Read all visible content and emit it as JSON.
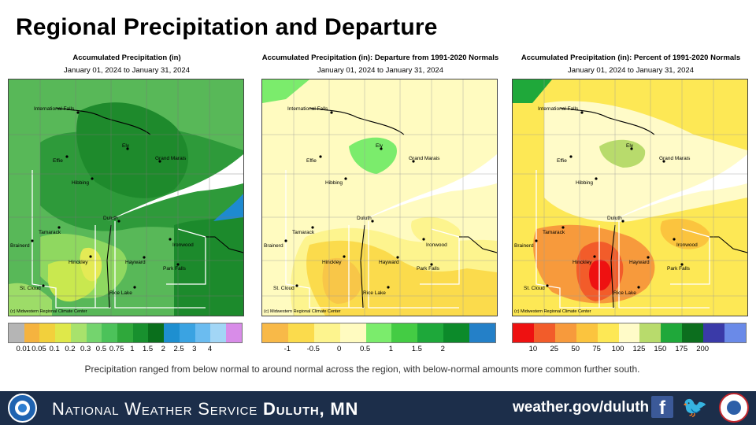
{
  "title": "Regional Precipitation and Departure",
  "date_range": "January 01, 2024 to January 31, 2024",
  "copyright": "(c) Midwestern Regional Climate Center",
  "place_labels": [
    "International Falls",
    "Effie",
    "Ely",
    "Grand Marais",
    "Hibbing",
    "Duluth",
    "Tamarack",
    "Brainerd",
    "Ironwood",
    "Hinckley",
    "Hayward",
    "Park Falls",
    "St. Cloud",
    "Rice Lake"
  ],
  "panels": [
    {
      "title": "Accumulated Precipitation (in)",
      "legend_colors": [
        "#b5b5b5",
        "#f5b33f",
        "#f2d03c",
        "#dfe84a",
        "#a8e26c",
        "#74d46e",
        "#4cc25a",
        "#2fa83b",
        "#18902e",
        "#0a6f1c",
        "#1e8fd0",
        "#3aa3e2",
        "#6bbcf0",
        "#a2d6f6",
        "#d88ce8"
      ],
      "ticks": [
        "0.01",
        "0.05",
        "0.1",
        "0.2",
        "0.3",
        "0.5",
        "0.75",
        "1",
        "1.5",
        "2",
        "2.5",
        "3",
        "4"
      ]
    },
    {
      "title": "Accumulated Precipitation (in): Departure from 1991-2020 Normals",
      "legend_colors": [
        "#f8b948",
        "#fbdb4c",
        "#fdf48e",
        "#fffbc0",
        "#7bec6c",
        "#44cc44",
        "#1ea83a",
        "#0c8a2a",
        "#2480c8"
      ],
      "ticks": [
        "-1",
        "-0.5",
        "0",
        "0.5",
        "1",
        "1.5",
        "2"
      ]
    },
    {
      "title": "Accumulated Precipitation (in): Percent of 1991-2020 Normals",
      "legend_colors": [
        "#ee1111",
        "#f25c2a",
        "#f79a3c",
        "#fbc43e",
        "#fde855",
        "#fffbc8",
        "#b8db6c",
        "#1fa83a",
        "#0c6e1e",
        "#3a3aa8",
        "#6a8ae8"
      ],
      "ticks": [
        "10",
        "25",
        "50",
        "75",
        "100",
        "125",
        "150",
        "175",
        "200"
      ]
    }
  ],
  "caption": "Precipitation ranged from below normal to around normal across the region, with below-normal amounts more common further south.",
  "footer": {
    "office_prefix": "National Weather Service",
    "office_name": "Duluth, MN",
    "website": "weather.gov/duluth",
    "facebook_glyph": "f",
    "twitter_glyph": "🐦"
  }
}
